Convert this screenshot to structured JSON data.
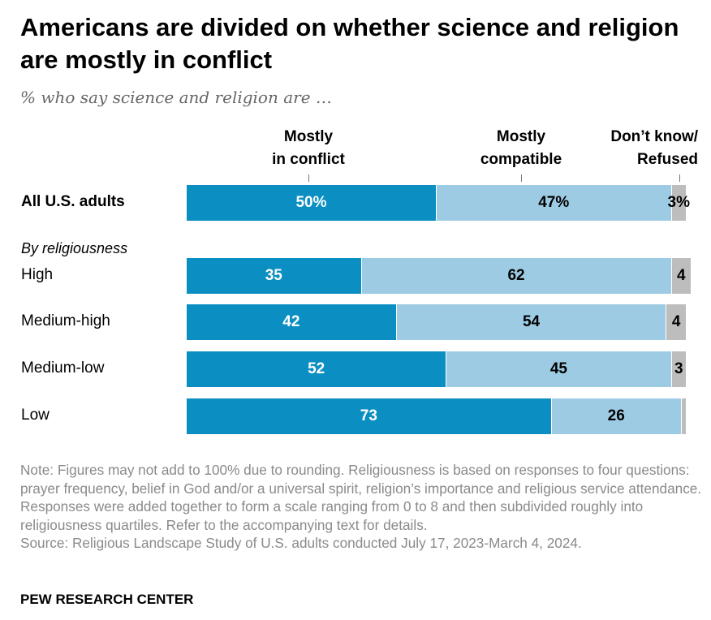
{
  "title": "Americans are divided on whether science and religion are mostly in conflict",
  "subtitle": "% who say science and religion are …",
  "colors": {
    "conflict": "#0b8fc2",
    "compatible": "#9ecbe4",
    "dk": "#bdbdbd"
  },
  "chart_data": {
    "type": "bar",
    "orientation": "horizontal-stacked",
    "series": [
      {
        "name": "Mostly in conflict",
        "values": [
          50,
          35,
          42,
          52,
          73
        ]
      },
      {
        "name": "Mostly compatible",
        "values": [
          47,
          62,
          54,
          45,
          26
        ]
      },
      {
        "name": "Don’t know/ Refused",
        "values": [
          3,
          4,
          4,
          3,
          1
        ]
      }
    ],
    "categories": [
      "All U.S. adults",
      "High",
      "Medium-high",
      "Medium-low",
      "Low"
    ],
    "labels": [
      [
        "50%",
        "47%",
        "3%"
      ],
      [
        "35",
        "62",
        "4"
      ],
      [
        "42",
        "54",
        "4"
      ],
      [
        "52",
        "45",
        "3"
      ],
      [
        "73",
        "26",
        ""
      ]
    ],
    "group_label": "By religiousness",
    "xlim": [
      0,
      100
    ]
  },
  "headers": {
    "conflict": [
      "Mostly",
      "in conflict"
    ],
    "compatible": [
      "Mostly",
      "compatible"
    ],
    "dk": [
      "Don’t know/",
      "Refused"
    ]
  },
  "note": "Note: Figures may not add to 100% due to rounding. Religiousness is based on responses to four questions: prayer frequency, belief in God and/or a universal spirit, religion’s importance and religious service attendance. Responses were added together to form a scale ranging from 0 to 8 and then subdivided roughly into religiousness quartiles. Refer to the accompanying text for details.",
  "source": "Source: Religious Landscape Study of U.S. adults conducted July 17, 2023-March 4, 2024.",
  "brand": "PEW RESEARCH CENTER"
}
